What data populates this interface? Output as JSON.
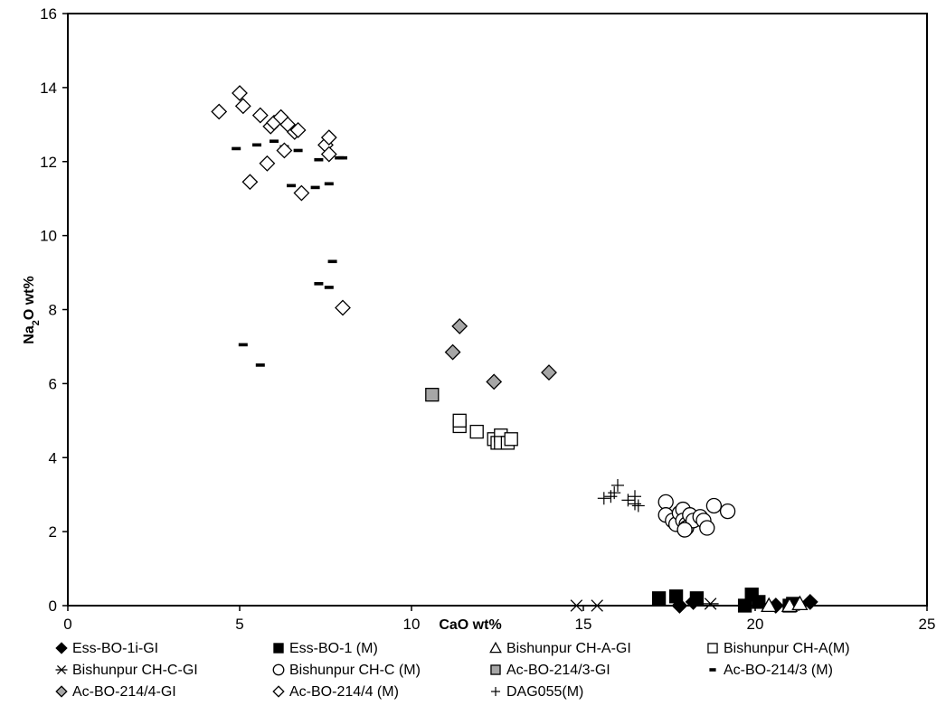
{
  "chart_data": {
    "type": "scatter",
    "xlabel": "CaO wt%",
    "ylabel": "Na2O wt%",
    "ylabel_parts": {
      "base": "Na",
      "sub": "2",
      "rest": "O wt%"
    },
    "xlim": [
      0,
      25
    ],
    "ylim": [
      0,
      16
    ],
    "xticks": [
      "0",
      "5",
      "10",
      "15",
      "20",
      "25"
    ],
    "yticks": [
      "0",
      "2",
      "4",
      "6",
      "8",
      "10",
      "12",
      "14",
      "16"
    ],
    "grid": false,
    "legend_position": "bottom",
    "series": [
      {
        "name": "Ess-BO-1i-GI",
        "marker": "diamond-filled",
        "color": "#000000",
        "points": [
          [
            17.8,
            0.0
          ],
          [
            18.2,
            0.1
          ],
          [
            20.6,
            0.0
          ],
          [
            21.6,
            0.1
          ]
        ]
      },
      {
        "name": "Ess-BO-1 (M)",
        "marker": "square-filled",
        "color": "#000000",
        "points": [
          [
            17.2,
            0.2
          ],
          [
            17.7,
            0.25
          ],
          [
            18.3,
            0.2
          ],
          [
            19.7,
            0.0
          ],
          [
            19.9,
            0.3
          ],
          [
            20.1,
            0.1
          ],
          [
            21.0,
            0.0
          ],
          [
            21.1,
            0.05
          ]
        ]
      },
      {
        "name": "Bishunpur CH-A-GI",
        "marker": "triangle-open",
        "color": "#000000",
        "points": [
          [
            20.4,
            0.0
          ],
          [
            21.0,
            0.0
          ],
          [
            21.3,
            0.05
          ]
        ]
      },
      {
        "name": "Bishunpur CH-A(M)",
        "marker": "square-open",
        "color": "#000000",
        "points": [
          [
            11.4,
            4.85
          ],
          [
            11.4,
            5.0
          ],
          [
            11.9,
            4.7
          ],
          [
            12.4,
            4.5
          ],
          [
            12.5,
            4.4
          ],
          [
            12.6,
            4.6
          ],
          [
            12.6,
            4.4
          ],
          [
            12.8,
            4.4
          ],
          [
            12.9,
            4.5
          ]
        ]
      },
      {
        "name": "Bishunpur CH-C-GI",
        "marker": "asterisk",
        "color": "#000000",
        "points": [
          [
            14.8,
            0.0
          ],
          [
            15.4,
            0.0
          ],
          [
            18.7,
            0.05
          ]
        ]
      },
      {
        "name": "Bishunpur CH-C (M)",
        "marker": "circle-open",
        "color": "#000000",
        "points": [
          [
            17.4,
            2.8
          ],
          [
            17.4,
            2.45
          ],
          [
            17.6,
            2.3
          ],
          [
            17.7,
            2.2
          ],
          [
            17.8,
            2.5
          ],
          [
            17.9,
            2.6
          ],
          [
            17.9,
            2.3
          ],
          [
            18.0,
            2.2
          ],
          [
            18.0,
            2.1
          ],
          [
            18.1,
            2.45
          ],
          [
            18.2,
            2.3
          ],
          [
            18.4,
            2.4
          ],
          [
            18.5,
            2.3
          ],
          [
            18.6,
            2.1
          ],
          [
            18.8,
            2.7
          ],
          [
            19.2,
            2.55
          ],
          [
            17.95,
            2.05
          ]
        ]
      },
      {
        "name": "Ac-BO-214/3-GI",
        "marker": "square-gray",
        "color": "#a6a6a6",
        "points": [
          [
            10.6,
            5.7
          ]
        ]
      },
      {
        "name": "Ac-BO-214/3 (M)",
        "marker": "dash",
        "color": "#000000",
        "points": [
          [
            4.9,
            12.35
          ],
          [
            5.1,
            7.05
          ],
          [
            5.5,
            12.45
          ],
          [
            5.6,
            6.5
          ],
          [
            6.0,
            12.55
          ],
          [
            6.3,
            12.4
          ],
          [
            6.5,
            11.35
          ],
          [
            6.7,
            12.3
          ],
          [
            7.2,
            11.3
          ],
          [
            7.3,
            12.05
          ],
          [
            7.3,
            8.7
          ],
          [
            7.6,
            11.4
          ],
          [
            7.6,
            8.6
          ],
          [
            7.7,
            9.3
          ],
          [
            7.9,
            12.1
          ],
          [
            8.0,
            12.1
          ]
        ]
      },
      {
        "name": "Ac-BO-214/4-GI",
        "marker": "diamond-gray",
        "color": "#a6a6a6",
        "points": [
          [
            11.2,
            6.85
          ],
          [
            11.4,
            7.55
          ],
          [
            12.4,
            6.05
          ],
          [
            14.0,
            6.3
          ]
        ]
      },
      {
        "name": "Ac-BO-214/4 (M)",
        "marker": "diamond-open",
        "color": "#000000",
        "points": [
          [
            4.4,
            13.35
          ],
          [
            5.0,
            13.85
          ],
          [
            5.1,
            13.5
          ],
          [
            5.3,
            11.45
          ],
          [
            5.6,
            13.25
          ],
          [
            5.8,
            11.95
          ],
          [
            5.9,
            12.95
          ],
          [
            6.0,
            13.05
          ],
          [
            6.2,
            13.2
          ],
          [
            6.3,
            12.3
          ],
          [
            6.4,
            13.0
          ],
          [
            6.6,
            12.8
          ],
          [
            6.7,
            12.85
          ],
          [
            6.8,
            11.15
          ],
          [
            7.5,
            12.45
          ],
          [
            7.6,
            12.2
          ],
          [
            7.6,
            12.65
          ],
          [
            8.0,
            8.05
          ]
        ]
      },
      {
        "name": "DAG055(M)",
        "marker": "plus",
        "color": "#000000",
        "points": [
          [
            15.6,
            2.9
          ],
          [
            15.8,
            2.95
          ],
          [
            15.9,
            3.05
          ],
          [
            16.0,
            3.25
          ],
          [
            16.3,
            2.85
          ],
          [
            16.5,
            2.95
          ],
          [
            16.5,
            2.75
          ],
          [
            16.6,
            2.7
          ]
        ]
      }
    ]
  }
}
